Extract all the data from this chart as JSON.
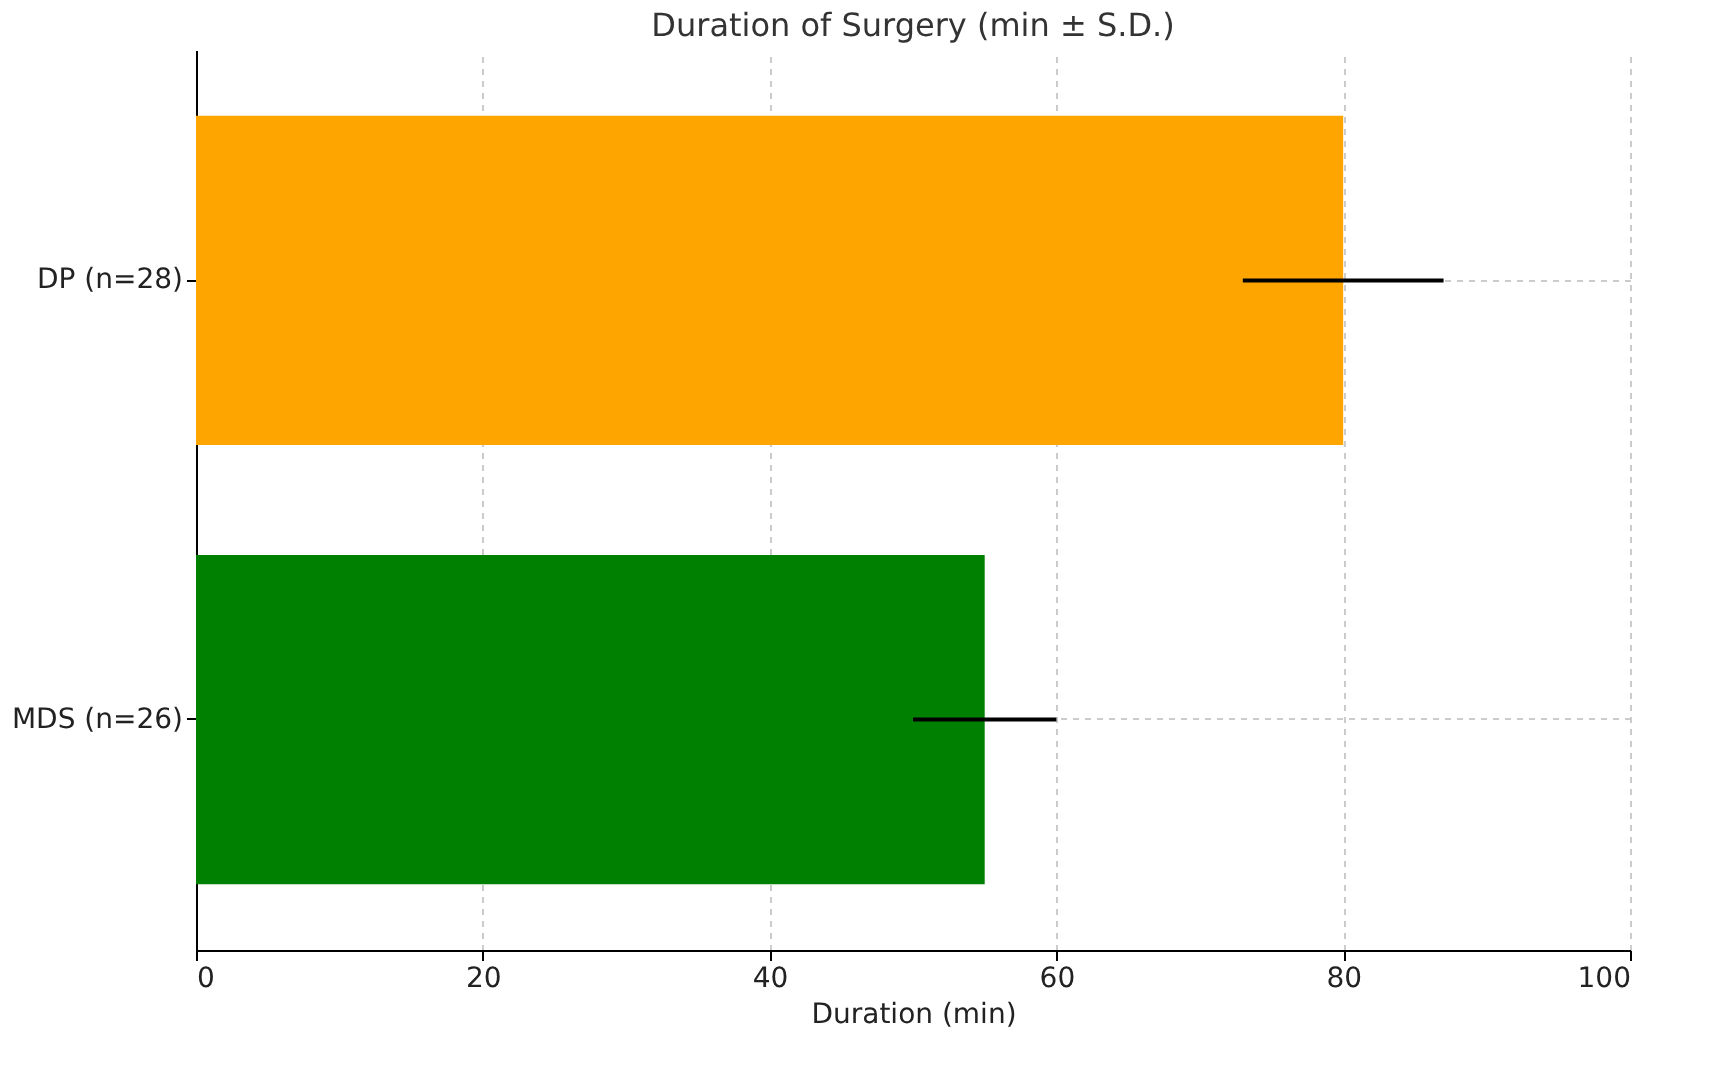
{
  "chart_data": {
    "type": "bar",
    "orientation": "horizontal",
    "title": "Duration of Surgery (min ± S.D.)",
    "xlabel": "Duration (min)",
    "categories": [
      "DP (n=28)",
      "MDS (n=26)"
    ],
    "values": [
      80,
      55
    ],
    "colors": [
      "#ffa500",
      "#008000"
    ],
    "errors": [
      7,
      5
    ],
    "xlim": [
      0,
      100
    ],
    "xticks": [
      0,
      20,
      40,
      60,
      80,
      100
    ],
    "grid": true
  }
}
